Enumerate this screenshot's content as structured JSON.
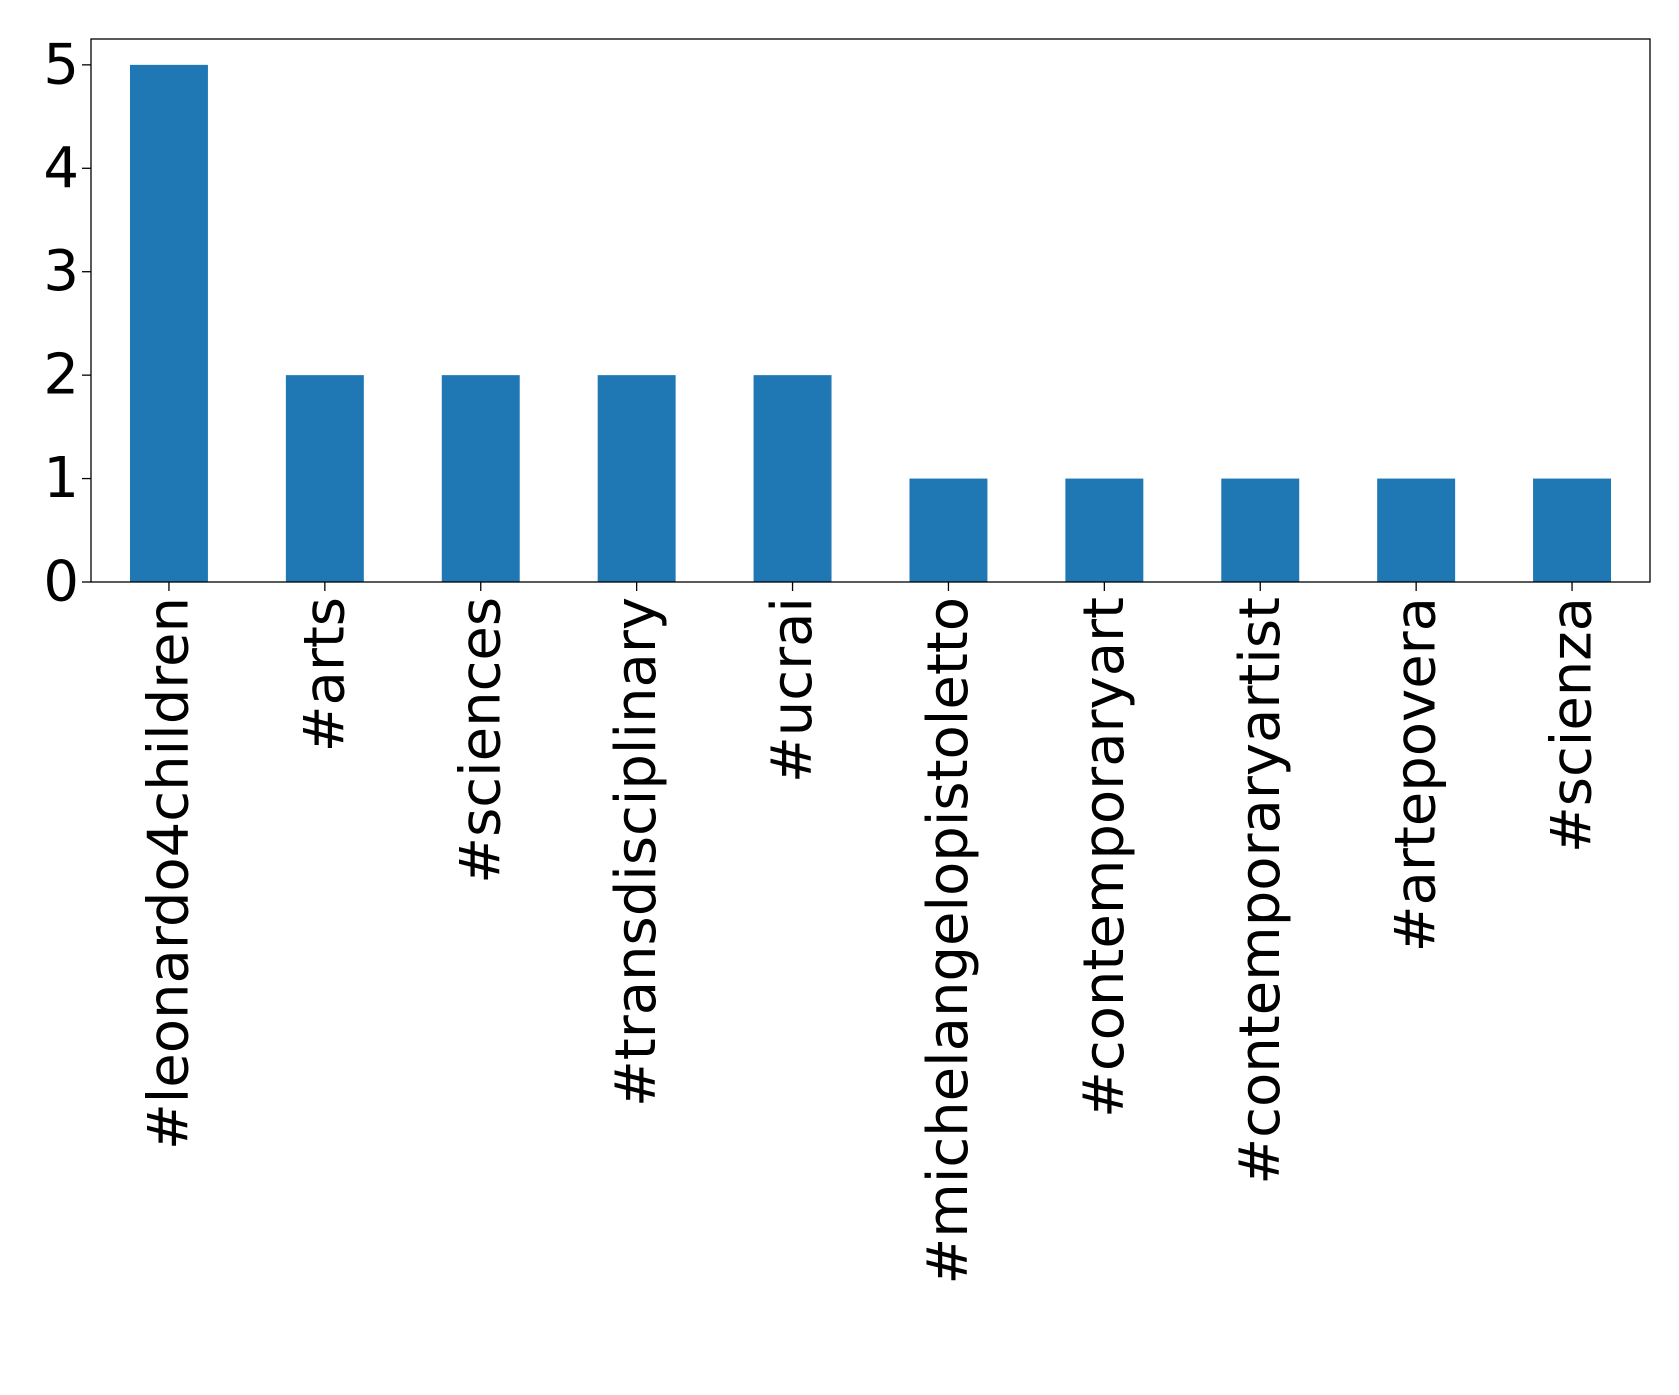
{
  "chart_data": {
    "type": "bar",
    "title": "",
    "xlabel": "",
    "ylabel": "",
    "categories": [
      "#leonardo4children",
      "#arts",
      "#sciences",
      "#transdisciplinary",
      "#ucrai",
      "#michelangelopistoletto",
      "#contemporaryart",
      "#contemporaryartist",
      "#artepovera",
      "#scienza"
    ],
    "values": [
      5,
      2,
      2,
      2,
      2,
      1,
      1,
      1,
      1,
      1
    ],
    "ylim": [
      0,
      5.25
    ],
    "yticks": [
      0,
      1,
      2,
      3,
      4,
      5
    ],
    "bar_color": "#1f77b4",
    "grid": false,
    "legend": "none"
  }
}
